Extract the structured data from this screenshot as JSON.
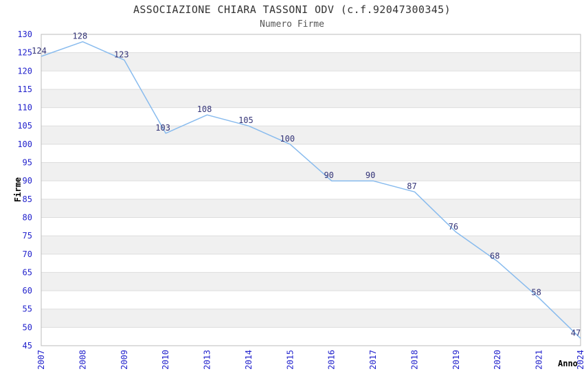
{
  "chart_data": {
    "type": "line",
    "title": "ASSOCIAZIONE CHIARA TASSONI ODV (c.f.92047300345)",
    "subtitle": "Numero Firme",
    "xlabel": "Anno",
    "ylabel": "Firme",
    "categories": [
      "2007",
      "2008",
      "2009",
      "2010",
      "2013",
      "2014",
      "2015",
      "2016",
      "2017",
      "2018",
      "2019",
      "2020",
      "2021",
      "2024"
    ],
    "series": [
      {
        "name": "Numero Firme",
        "values": [
          124,
          128,
          123,
          103,
          108,
          105,
          100,
          90,
          90,
          87,
          76,
          68,
          58,
          47
        ]
      }
    ],
    "ylim": [
      45,
      130
    ],
    "ytick_step": 5,
    "grid": true,
    "bands_alternating": true,
    "legend_position": "none",
    "show_point_labels": true,
    "colors": {
      "line": "#88BBEE",
      "tick_label": "#2222CC",
      "data_label": "#333377",
      "band_alt": "#F0F0F0",
      "band_base": "#FFFFFF",
      "grid_line": "#DDDDDD",
      "plot_border": "#BBBBBB",
      "title": "#333333",
      "subtitle": "#555555",
      "axis_title": "#000000",
      "background": "#FFFFFF"
    }
  }
}
